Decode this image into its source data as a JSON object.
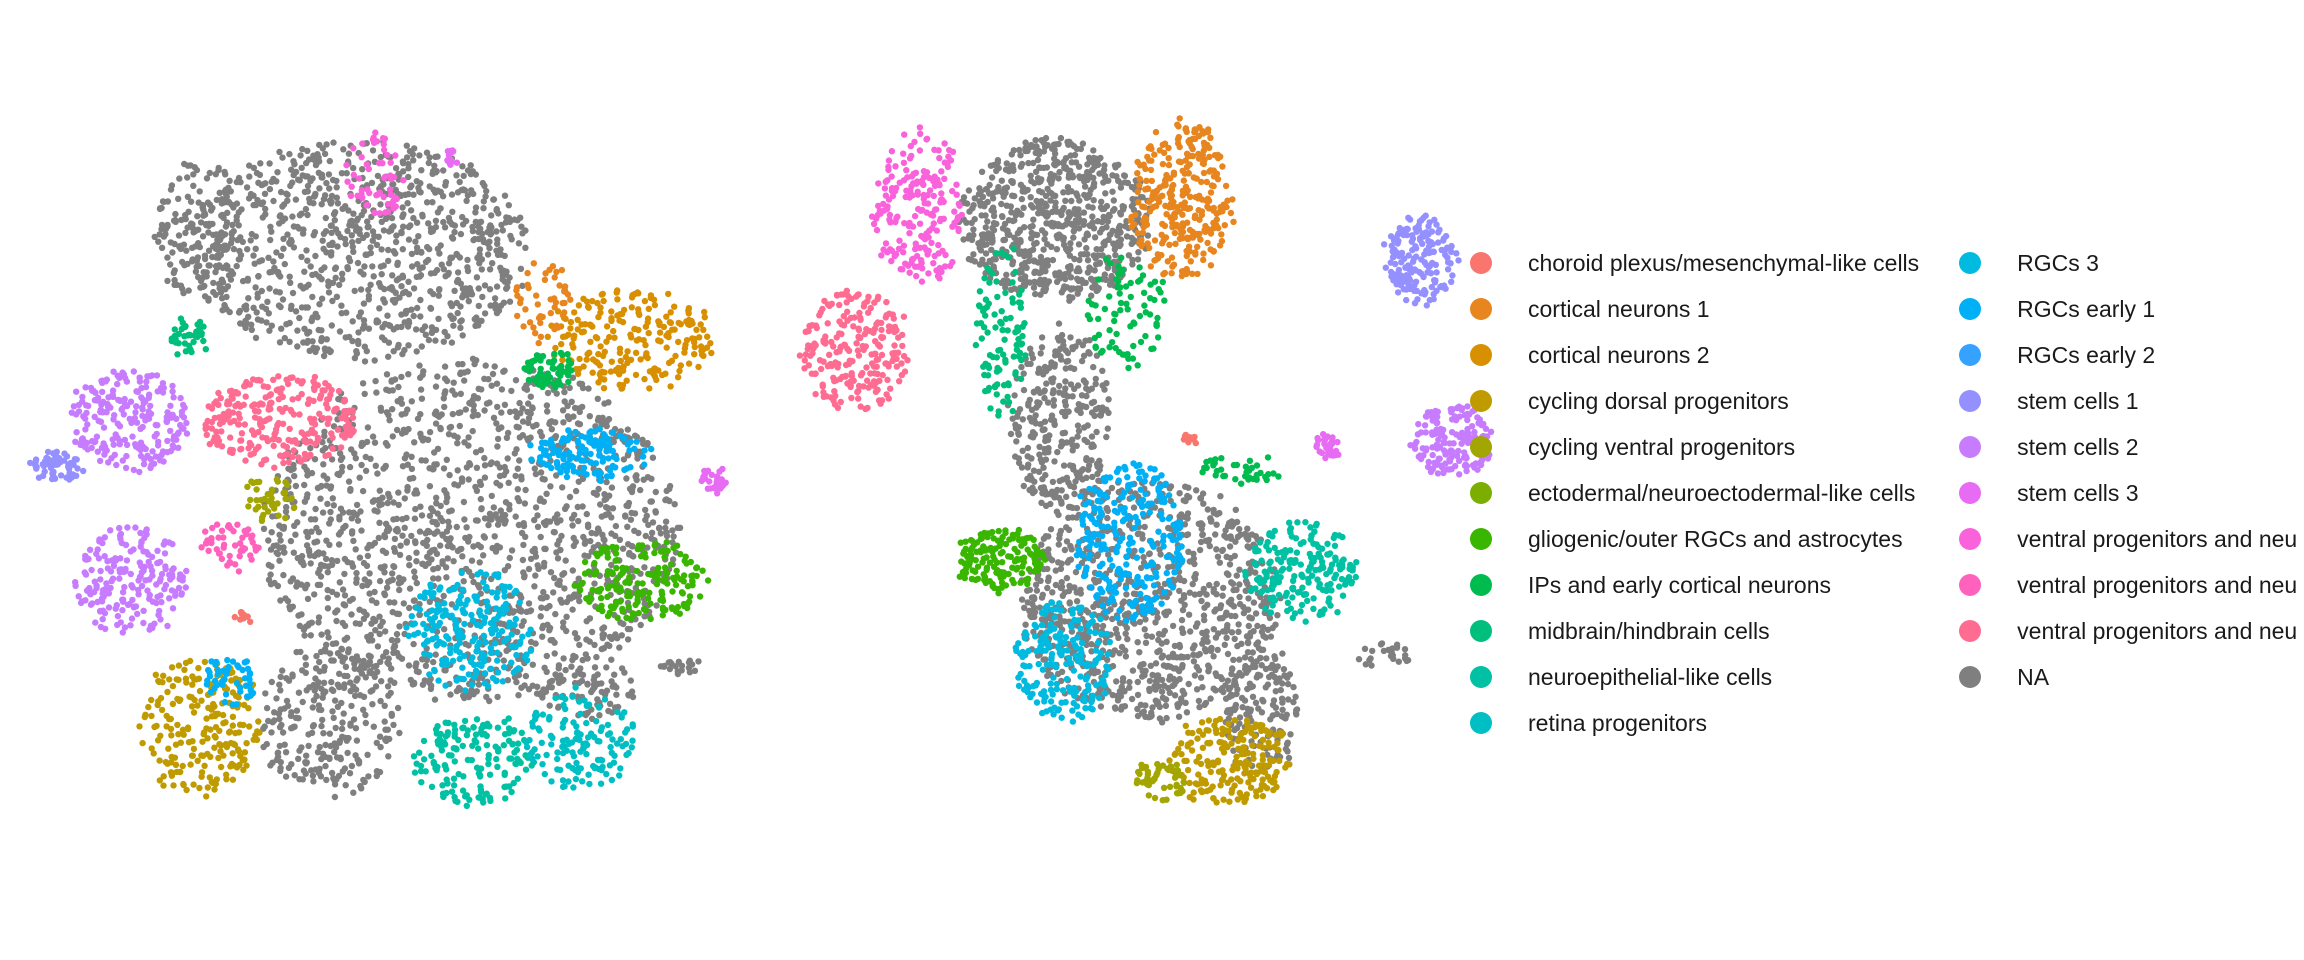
{
  "chart_data": {
    "type": "scatter",
    "title": "",
    "panels": [
      "embedding-left",
      "embedding-right"
    ],
    "grid": false,
    "legend_placement": "right",
    "legend": [
      {
        "name": "choroid plexus/mesenchymal-like cells",
        "color": "#F8766D"
      },
      {
        "name": "cortical neurons 1",
        "color": "#E7851E"
      },
      {
        "name": "cortical neurons 2",
        "color": "#D89000"
      },
      {
        "name": "cycling dorsal progenitors",
        "color": "#C09B00"
      },
      {
        "name": "cycling ventral progenitors",
        "color": "#A3A500"
      },
      {
        "name": "ectodermal/neuroectodermal-like cells",
        "color": "#7CAE00"
      },
      {
        "name": "gliogenic/outer RGCs and astrocytes",
        "color": "#39B600"
      },
      {
        "name": "IPs and early cortical neurons",
        "color": "#00BB4E"
      },
      {
        "name": "midbrain/hindbrain cells",
        "color": "#00BF7D"
      },
      {
        "name": "neuroepithelial-like cells",
        "color": "#00C1A3"
      },
      {
        "name": "retina progenitors",
        "color": "#00BFC4"
      },
      {
        "name": "RGCs 3",
        "color": "#00BAE0"
      },
      {
        "name": "RGCs early 1",
        "color": "#00B0F6"
      },
      {
        "name": "RGCs early 2",
        "color": "#35A2FF"
      },
      {
        "name": "stem cells 1",
        "color": "#9590FF"
      },
      {
        "name": "stem cells 2",
        "color": "#C77CFF"
      },
      {
        "name": "stem cells 3",
        "color": "#E76BF3"
      },
      {
        "name": "ventral progenitors and neu",
        "color": "#FA62DB"
      },
      {
        "name": "ventral progenitors and neu",
        "color": "#FF62BC"
      },
      {
        "name": "ventral progenitors and neu",
        "color": "#FF6C91"
      },
      {
        "name": "NA",
        "color": "#7F7F7F"
      }
    ]
  }
}
